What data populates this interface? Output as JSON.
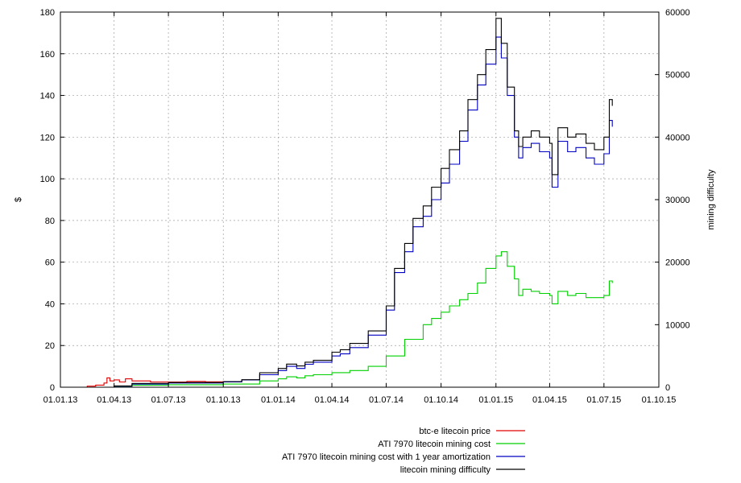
{
  "chart_data": {
    "type": "line",
    "x_tick_labels": [
      "01.01.13",
      "01.04.13",
      "01.07.13",
      "01.10.13",
      "01.01.14",
      "01.04.14",
      "01.07.14",
      "01.10.14",
      "01.01.15",
      "01.04.15",
      "01.07.15",
      "01.10.15"
    ],
    "y_left_label": "$",
    "y_left_ticks": [
      "0",
      "20",
      "40",
      "60",
      "80",
      "100",
      "120",
      "140",
      "160",
      "180"
    ],
    "y_left_lim": [
      0,
      180
    ],
    "y_right_label": "mining difficulty",
    "y_right_ticks": [
      "0",
      "10000",
      "20000",
      "30000",
      "40000",
      "50000",
      "60000"
    ],
    "y_right_lim": [
      0,
      60000
    ],
    "grid": true,
    "legend_position": "below",
    "series": [
      {
        "name": "btc-e litecoin price",
        "color": "#e00000",
        "axis": "left",
        "points": [
          [
            "01.01.13",
            0.0
          ],
          [
            "15.02.13",
            0.5
          ],
          [
            "01.03.13",
            1.0
          ],
          [
            "15.03.13",
            2.0
          ],
          [
            "20.03.13",
            4.5
          ],
          [
            "25.03.13",
            3.0
          ],
          [
            "01.04.13",
            3.5
          ],
          [
            "10.04.13",
            2.5
          ],
          [
            "20.04.13",
            4.0
          ],
          [
            "01.05.13",
            3.0
          ],
          [
            "15.05.13",
            3.0
          ],
          [
            "01.06.13",
            2.5
          ],
          [
            "01.07.13",
            2.5
          ],
          [
            "01.08.13",
            2.8
          ],
          [
            "01.09.13",
            2.6
          ],
          [
            "01.10.13",
            2.5
          ]
        ]
      },
      {
        "name": "ATI 7970 litecoin mining cost",
        "color": "#00d000",
        "axis": "left",
        "points": [
          [
            "01.01.13",
            0.0
          ],
          [
            "01.04.13",
            0.5
          ],
          [
            "01.05.13",
            1.0
          ],
          [
            "01.07.13",
            1.2
          ],
          [
            "01.10.13",
            1.5
          ],
          [
            "01.12.13",
            3.0
          ],
          [
            "01.01.14",
            4.0
          ],
          [
            "15.01.14",
            5.0
          ],
          [
            "01.02.14",
            4.5
          ],
          [
            "15.02.14",
            5.5
          ],
          [
            "01.03.14",
            6.0
          ],
          [
            "01.04.14",
            7.0
          ],
          [
            "15.04.14",
            7.0
          ],
          [
            "01.05.14",
            8.0
          ],
          [
            "01.06.14",
            10.0
          ],
          [
            "01.07.14",
            15.0
          ],
          [
            "01.08.14",
            23.0
          ],
          [
            "01.09.14",
            30.0
          ],
          [
            "15.09.14",
            33.0
          ],
          [
            "01.10.14",
            36.0
          ],
          [
            "15.10.14",
            39.0
          ],
          [
            "01.11.14",
            42.0
          ],
          [
            "15.11.14",
            45.0
          ],
          [
            "01.12.14",
            50.0
          ],
          [
            "15.12.14",
            57.0
          ],
          [
            "01.01.15",
            63.0
          ],
          [
            "10.01.15",
            65.0
          ],
          [
            "20.01.15",
            58.0
          ],
          [
            "01.02.15",
            52.0
          ],
          [
            "08.02.15",
            44.0
          ],
          [
            "15.02.15",
            47.0
          ],
          [
            "01.03.15",
            46.0
          ],
          [
            "15.03.15",
            45.0
          ],
          [
            "01.04.15",
            44.0
          ],
          [
            "05.04.15",
            40.0
          ],
          [
            "15.04.15",
            46.0
          ],
          [
            "01.05.15",
            44.0
          ],
          [
            "15.05.15",
            45.0
          ],
          [
            "01.06.15",
            43.0
          ],
          [
            "15.06.15",
            43.0
          ],
          [
            "01.07.15",
            44.0
          ],
          [
            "10.07.15",
            51.0
          ],
          [
            "15.07.15",
            50.0
          ]
        ]
      },
      {
        "name": "ATI 7970 litecoin mining cost with 1 year amortization",
        "color": "#0000c0",
        "axis": "left",
        "points": [
          [
            "01.01.13",
            0.0
          ],
          [
            "01.04.13",
            0.5
          ],
          [
            "01.05.13",
            1.5
          ],
          [
            "01.07.13",
            2.0
          ],
          [
            "01.10.13",
            2.5
          ],
          [
            "01.11.13",
            3.5
          ],
          [
            "01.12.13",
            6.0
          ],
          [
            "01.01.14",
            8.0
          ],
          [
            "15.01.14",
            10.0
          ],
          [
            "01.02.14",
            9.0
          ],
          [
            "15.02.14",
            11.0
          ],
          [
            "01.03.14",
            12.0
          ],
          [
            "01.04.14",
            15.0
          ],
          [
            "15.04.14",
            16.0
          ],
          [
            "01.05.14",
            19.0
          ],
          [
            "01.06.14",
            25.0
          ],
          [
            "01.07.14",
            37.0
          ],
          [
            "15.07.14",
            55.0
          ],
          [
            "01.08.14",
            65.0
          ],
          [
            "15.08.14",
            77.0
          ],
          [
            "01.09.14",
            82.0
          ],
          [
            "15.09.14",
            90.0
          ],
          [
            "01.10.14",
            98.0
          ],
          [
            "15.10.14",
            107.0
          ],
          [
            "01.11.14",
            118.0
          ],
          [
            "15.11.14",
            133.0
          ],
          [
            "01.12.14",
            145.0
          ],
          [
            "15.12.14",
            155.0
          ],
          [
            "01.01.15",
            168.0
          ],
          [
            "10.01.15",
            158.0
          ],
          [
            "20.01.15",
            140.0
          ],
          [
            "01.02.15",
            120.0
          ],
          [
            "08.02.15",
            110.0
          ],
          [
            "15.02.15",
            115.0
          ],
          [
            "01.03.15",
            117.0
          ],
          [
            "15.03.15",
            113.0
          ],
          [
            "01.04.15",
            110.0
          ],
          [
            "05.04.15",
            96.0
          ],
          [
            "15.04.15",
            118.0
          ],
          [
            "01.05.15",
            113.0
          ],
          [
            "15.05.15",
            115.0
          ],
          [
            "01.06.15",
            110.0
          ],
          [
            "15.06.15",
            107.0
          ],
          [
            "01.07.15",
            112.0
          ],
          [
            "10.07.15",
            128.0
          ],
          [
            "15.07.15",
            125.0
          ]
        ]
      },
      {
        "name": "litecoin mining difficulty",
        "color": "#000000",
        "axis": "right",
        "points": [
          [
            "01.01.13",
            0
          ],
          [
            "01.04.13",
            200
          ],
          [
            "01.05.13",
            600
          ],
          [
            "01.07.13",
            750
          ],
          [
            "01.10.13",
            900
          ],
          [
            "01.11.13",
            1200
          ],
          [
            "01.12.13",
            2300
          ],
          [
            "01.01.14",
            3000
          ],
          [
            "15.01.14",
            3700
          ],
          [
            "01.02.14",
            3400
          ],
          [
            "15.02.14",
            4000
          ],
          [
            "01.03.14",
            4300
          ],
          [
            "01.04.14",
            5600
          ],
          [
            "15.04.14",
            6000
          ],
          [
            "01.05.14",
            7000
          ],
          [
            "01.06.14",
            9000
          ],
          [
            "01.07.14",
            13000
          ],
          [
            "15.07.14",
            19000
          ],
          [
            "01.08.14",
            23000
          ],
          [
            "15.08.14",
            27000
          ],
          [
            "01.09.14",
            29000
          ],
          [
            "15.09.14",
            32000
          ],
          [
            "01.10.14",
            35000
          ],
          [
            "15.10.14",
            38000
          ],
          [
            "01.11.14",
            41000
          ],
          [
            "15.11.14",
            46000
          ],
          [
            "01.12.14",
            50000
          ],
          [
            "15.12.14",
            54000
          ],
          [
            "01.01.15",
            59000
          ],
          [
            "10.01.15",
            55000
          ],
          [
            "20.01.15",
            48000
          ],
          [
            "01.02.15",
            41000
          ],
          [
            "08.02.15",
            38500
          ],
          [
            "15.02.15",
            40000
          ],
          [
            "01.03.15",
            41000
          ],
          [
            "15.03.15",
            40000
          ],
          [
            "01.04.15",
            39000
          ],
          [
            "05.04.15",
            34000
          ],
          [
            "15.04.15",
            41500
          ],
          [
            "01.05.15",
            40000
          ],
          [
            "15.05.15",
            40500
          ],
          [
            "01.06.15",
            39000
          ],
          [
            "15.06.15",
            38000
          ],
          [
            "01.07.15",
            40000
          ],
          [
            "10.07.15",
            46000
          ],
          [
            "15.07.15",
            45000
          ]
        ]
      }
    ]
  }
}
